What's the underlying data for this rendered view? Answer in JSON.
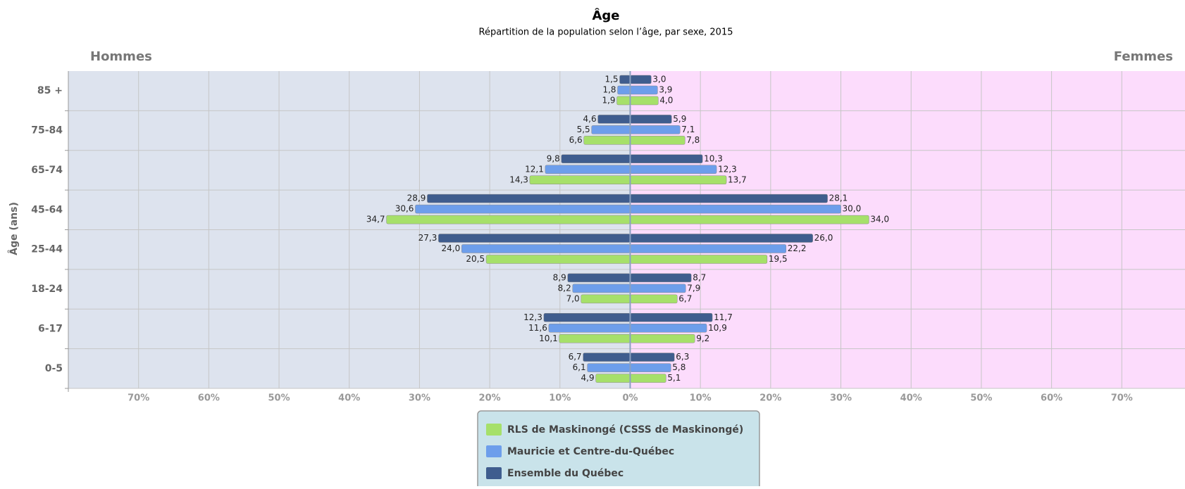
{
  "chart_data": {
    "type": "pyramid",
    "title": "Âge",
    "subtitle": "Répartition de la population selon l’âge, par sexe, 2015",
    "left_label": "Hommes",
    "right_label": "Femmes",
    "y_label": "Âge (ans)",
    "categories": [
      "85 +",
      "75-84",
      "65-74",
      "45-64",
      "25-44",
      "18-24",
      "6-17",
      "0-5"
    ],
    "series": [
      {
        "name": "RLS de Maskinongé (CSSS de Maskinongé)",
        "color": "#a6e06a",
        "hommes": {
          "values": [
            1.9,
            6.6,
            14.3,
            34.7,
            20.5,
            7.0,
            10.1,
            4.9
          ],
          "value_labels": [
            "1,9",
            "6,6",
            "14,3",
            "34,7",
            "20,5",
            "7,0",
            "10,1",
            "4,9"
          ]
        },
        "femmes": {
          "values": [
            4.0,
            7.8,
            13.7,
            34.0,
            19.5,
            6.7,
            9.2,
            5.1
          ],
          "value_labels": [
            "4,0",
            "7,8",
            "13,7",
            "34,0",
            "19,5",
            "6,7",
            "9,2",
            "5,1"
          ]
        }
      },
      {
        "name": "Mauricie et Centre-du-Québec",
        "color": "#6d9eeb",
        "hommes": {
          "values": [
            1.8,
            5.5,
            12.1,
            30.6,
            24.0,
            8.2,
            11.6,
            6.1
          ],
          "value_labels": [
            "1,8",
            "5,5",
            "12,1",
            "30,6",
            "24,0",
            "8,2",
            "11,6",
            "6,1"
          ]
        },
        "femmes": {
          "values": [
            3.9,
            7.1,
            12.3,
            30.0,
            22.2,
            7.9,
            10.9,
            5.8
          ],
          "value_labels": [
            "3,9",
            "7,1",
            "12,3",
            "30,0",
            "22,2",
            "7,9",
            "10,9",
            "5,8"
          ]
        }
      },
      {
        "name": "Ensemble du Québec",
        "color": "#3f5d8e",
        "hommes": {
          "values": [
            1.5,
            4.6,
            9.8,
            28.9,
            27.3,
            8.9,
            12.3,
            6.7
          ],
          "value_labels": [
            "1,5",
            "4,6",
            "9,8",
            "28,9",
            "27,3",
            "8,9",
            "12,3",
            "6,7"
          ]
        },
        "femmes": {
          "values": [
            3.0,
            5.9,
            10.3,
            28.1,
            26.0,
            8.7,
            11.7,
            6.3
          ],
          "value_labels": [
            "3,0",
            "5,9",
            "10,3",
            "28,1",
            "26,0",
            "8,7",
            "11,7",
            "6,3"
          ]
        }
      }
    ],
    "xlim": [
      -80,
      79
    ],
    "xticks": [
      {
        "value": -70,
        "label": "70%"
      },
      {
        "value": -60,
        "label": "60%"
      },
      {
        "value": -50,
        "label": "50%"
      },
      {
        "value": -40,
        "label": "40%"
      },
      {
        "value": -30,
        "label": "30%"
      },
      {
        "value": -20,
        "label": "20%"
      },
      {
        "value": -10,
        "label": "10%"
      },
      {
        "value": 0,
        "label": "0%"
      },
      {
        "value": 10,
        "label": "10%"
      },
      {
        "value": 20,
        "label": "20%"
      },
      {
        "value": 30,
        "label": "30%"
      },
      {
        "value": 40,
        "label": "40%"
      },
      {
        "value": 50,
        "label": "50%"
      },
      {
        "value": 60,
        "label": "60%"
      },
      {
        "value": 70,
        "label": "70%"
      }
    ],
    "grid": true,
    "legend": "bottom"
  }
}
